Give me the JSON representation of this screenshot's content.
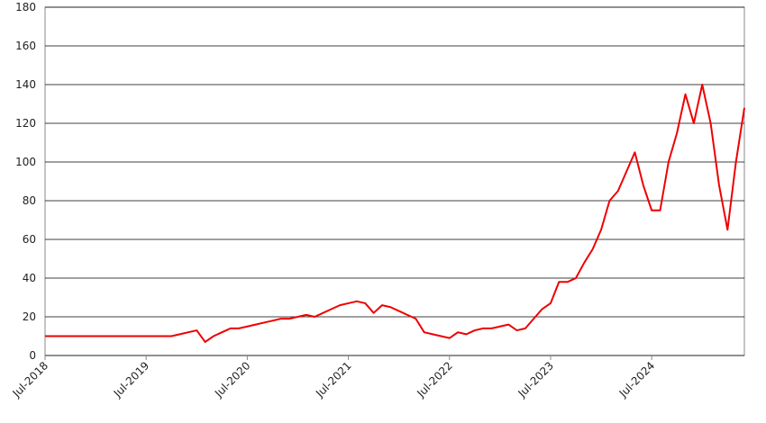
{
  "chart_data": {
    "type": "line",
    "x": [
      "Jul-2018",
      "Aug-2018",
      "Sep-2018",
      "Oct-2018",
      "Nov-2018",
      "Dec-2018",
      "Jan-2019",
      "Feb-2019",
      "Mar-2019",
      "Apr-2019",
      "May-2019",
      "Jun-2019",
      "Jul-2019",
      "Aug-2019",
      "Sep-2019",
      "Oct-2019",
      "Nov-2019",
      "Dec-2019",
      "Jan-2020",
      "Feb-2020",
      "Mar-2020",
      "Apr-2020",
      "May-2020",
      "Jun-2020",
      "Jul-2020",
      "Aug-2020",
      "Sep-2020",
      "Oct-2020",
      "Nov-2020",
      "Dec-2020",
      "Jan-2021",
      "Feb-2021",
      "Mar-2021",
      "Apr-2021",
      "May-2021",
      "Jun-2021",
      "Jul-2021",
      "Aug-2021",
      "Sep-2021",
      "Oct-2021",
      "Nov-2021",
      "Dec-2021",
      "Jan-2022",
      "Feb-2022",
      "Mar-2022",
      "Apr-2022",
      "May-2022",
      "Jun-2022",
      "Jul-2022",
      "Aug-2022",
      "Sep-2022",
      "Oct-2022",
      "Nov-2022",
      "Dec-2022",
      "Jan-2023",
      "Feb-2023",
      "Mar-2023",
      "Apr-2023",
      "May-2023",
      "Jun-2023",
      "Jul-2023",
      "Aug-2023",
      "Sep-2023",
      "Oct-2023",
      "Nov-2023",
      "Dec-2023",
      "Jan-2024",
      "Feb-2024",
      "Mar-2024",
      "Apr-2024",
      "May-2024",
      "Jun-2024",
      "Jul-2024",
      "Aug-2024",
      "Sep-2024",
      "Oct-2024",
      "Nov-2024",
      "Dec-2024",
      "Jan-2025",
      "Feb-2025",
      "Mar-2025",
      "Apr-2025",
      "May-2025",
      "Jun-2025"
    ],
    "series": [
      {
        "color": "#ee0000",
        "values": [
          10,
          10,
          10,
          10,
          10,
          10,
          10,
          10,
          10,
          10,
          10,
          10,
          10,
          10,
          10,
          10,
          11,
          12,
          13,
          7,
          10,
          12,
          14,
          14,
          15,
          16,
          17,
          18,
          19,
          19,
          20,
          21,
          20,
          22,
          24,
          26,
          27,
          28,
          27,
          22,
          26,
          25,
          23,
          21,
          19,
          12,
          11,
          10,
          9,
          12,
          11,
          13,
          14,
          14,
          15,
          16,
          13,
          14,
          19,
          24,
          27,
          38,
          38,
          40,
          48,
          55,
          65,
          80,
          85,
          95,
          105,
          88,
          75,
          75,
          100,
          115,
          135,
          120,
          140,
          120,
          88,
          65,
          100,
          128
        ]
      }
    ],
    "xticks": [
      "Jul-2018",
      "Jul-2019",
      "Jul-2020",
      "Jul-2021",
      "Jul-2022",
      "Jul-2023",
      "Jul-2024"
    ],
    "ylim": [
      0,
      180
    ],
    "yticks": [
      0,
      20,
      40,
      60,
      80,
      100,
      120,
      140,
      160,
      180
    ],
    "grid": true
  }
}
